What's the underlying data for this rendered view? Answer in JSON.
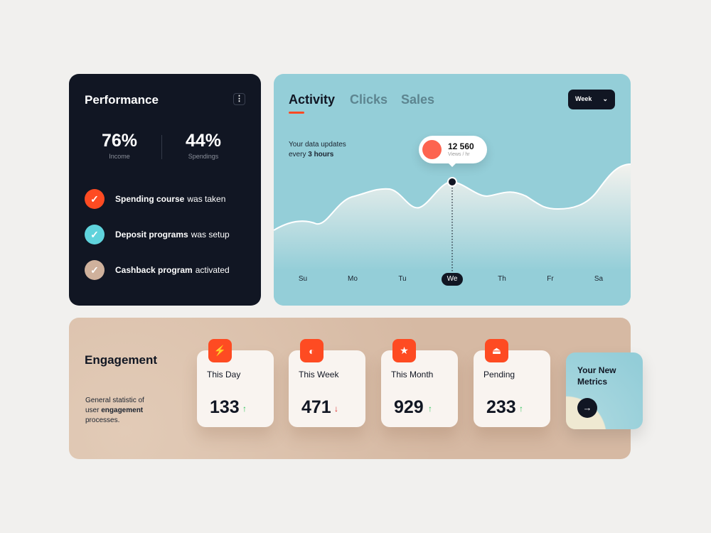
{
  "performance": {
    "title": "Performance",
    "menu_icon": "more-vertical-icon",
    "stats": [
      {
        "value": "76%",
        "label": "Income"
      },
      {
        "value": "44%",
        "label": "Spendings"
      }
    ],
    "items": [
      {
        "bold": "Spending course",
        "rest": "was taken",
        "color": "#fe4b22"
      },
      {
        "bold": "Deposit programs",
        "rest": "was setup",
        "color": "#5fd3dc"
      },
      {
        "bold": "Cashback program",
        "rest": "activated",
        "color": "#cfb19c"
      }
    ]
  },
  "activity": {
    "tabs": [
      "Activity",
      "Clicks",
      "Sales"
    ],
    "active_tab": "Activity",
    "period": "Week",
    "update_text": "Your data updates",
    "update_every": "every",
    "update_bold": "3 hours",
    "tooltip": {
      "value": "12 560",
      "unit": "Views / hr"
    },
    "days": [
      "Su",
      "Mo",
      "Tu",
      "We",
      "Th",
      "Fr",
      "Sa"
    ],
    "selected_day": "We"
  },
  "engagement": {
    "title": "Engagement",
    "desc_1": "General statistic of",
    "desc_2": "user",
    "desc_bold": "engagement",
    "desc_3": "processes.",
    "stats": [
      {
        "label": "This Day",
        "value": "133",
        "trend": "up",
        "icon": "lightning-icon"
      },
      {
        "label": "This Week",
        "value": "471",
        "trend": "down",
        "icon": "half-circle-icon"
      },
      {
        "label": "This Month",
        "value": "929",
        "trend": "up",
        "icon": "star-icon"
      },
      {
        "label": "Pending",
        "value": "233",
        "trend": "up",
        "icon": "eject-icon"
      }
    ],
    "new_metrics": "Your New Metrics"
  },
  "colors": {
    "accent": "#fe4b22",
    "up": "#2ec55c",
    "down": "#d92a2a",
    "dark": "#111623"
  }
}
